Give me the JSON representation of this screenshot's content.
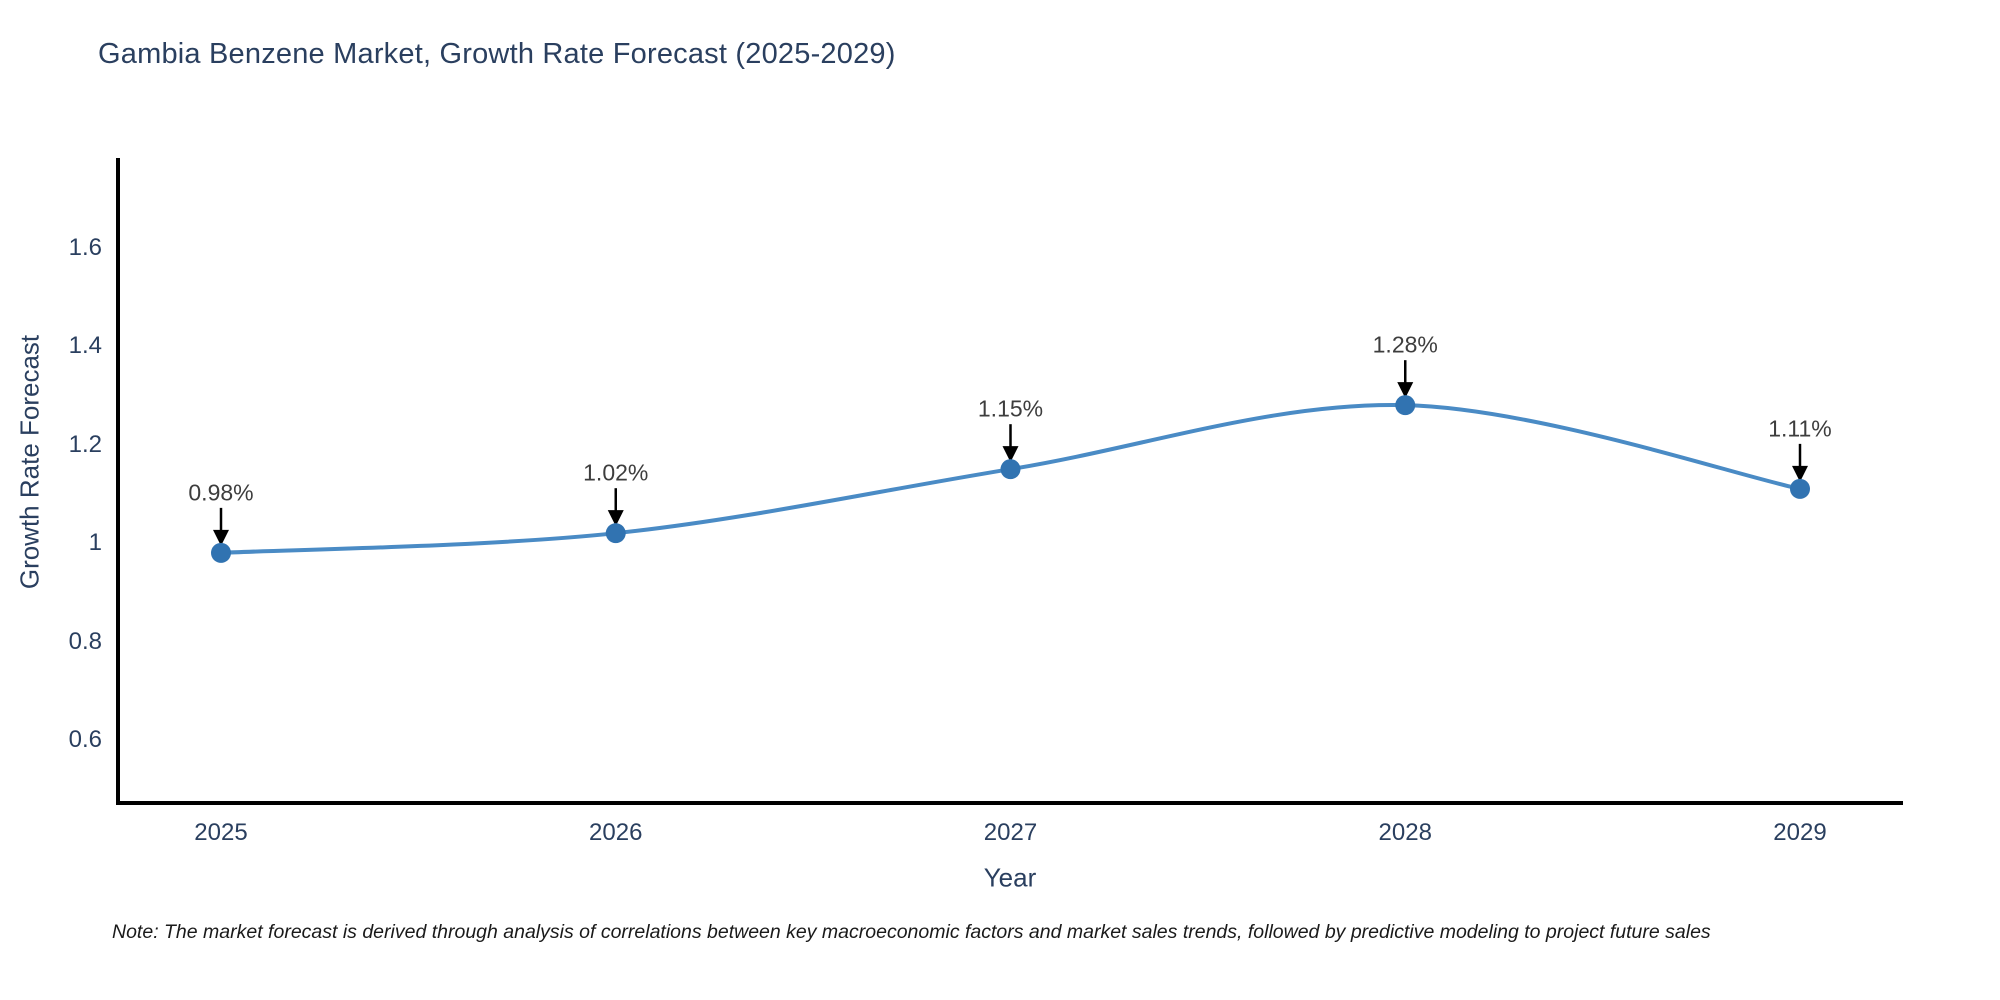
{
  "title": "Gambia Benzene Market, Growth Rate Forecast (2025-2029)",
  "note": "Note: The market forecast is derived through analysis of correlations between key macroeconomic factors and market sales trends, followed by predictive modeling to project future sales",
  "chart_data": {
    "type": "line",
    "title": "Gambia Benzene Market, Growth Rate Forecast (2025-2029)",
    "xlabel": "Year",
    "ylabel": "Growth Rate Forecast",
    "x": [
      2025,
      2026,
      2027,
      2028,
      2029
    ],
    "xtick_labels": [
      "2025",
      "2026",
      "2027",
      "2028",
      "2029"
    ],
    "values": [
      0.98,
      1.02,
      1.15,
      1.28,
      1.11
    ],
    "point_labels": [
      "0.98%",
      "1.02%",
      "1.15%",
      "1.28%",
      "1.11%"
    ],
    "yticks": [
      0.6,
      0.8,
      1,
      1.2,
      1.4,
      1.6
    ],
    "ytick_labels": [
      "0.6",
      "0.8",
      "1",
      "1.2",
      "1.4",
      "1.6"
    ],
    "ylim": [
      0.472,
      1.782
    ],
    "grid": false,
    "legend": false,
    "line_shape": "spline",
    "marker_size": 10,
    "colors": {
      "line": "#4a8bc5",
      "marker": "#3173b1",
      "axis": "#000000",
      "axis_text": "#2a3f5f",
      "annotation_text": "#3d3d3d",
      "arrow": "#000000",
      "background": "#ffffff"
    }
  }
}
